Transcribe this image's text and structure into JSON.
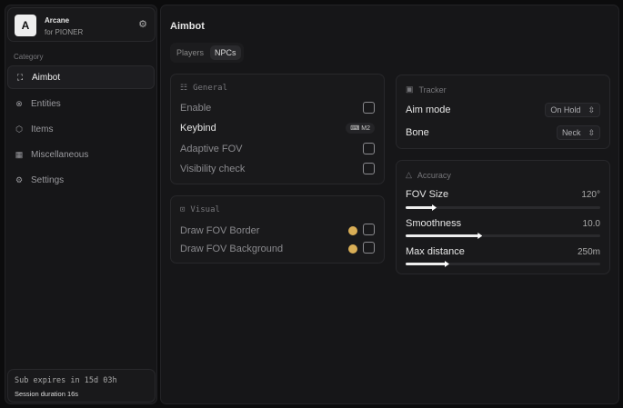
{
  "app": {
    "name": "Arcane",
    "subtitle": "for PIONER",
    "logo_letter": "A"
  },
  "sidebar": {
    "category_label": "Category",
    "items": [
      {
        "label": "Aimbot",
        "icon": "crosshair-icon",
        "active": true
      },
      {
        "label": "Entities",
        "icon": "entities-icon"
      },
      {
        "label": "Items",
        "icon": "cube-icon"
      },
      {
        "label": "Miscellaneous",
        "icon": "misc-icon"
      },
      {
        "label": "Settings",
        "icon": "gear-icon"
      }
    ],
    "footer": {
      "sub": "Sub expires in 15d 03h",
      "session": "Session duration 16s"
    }
  },
  "main": {
    "title": "Aimbot",
    "tabs": [
      {
        "label": "Players"
      },
      {
        "label": "NPCs",
        "active": true
      }
    ]
  },
  "general": {
    "title": "General",
    "enable": "Enable",
    "keybind": "Keybind",
    "keybind_value": "M2",
    "adaptive_fov": "Adaptive FOV",
    "visibility_check": "Visibility check"
  },
  "visual": {
    "title": "Visual",
    "border": "Draw FOV Border",
    "background": "Draw FOV Background",
    "color": "#d9ae56"
  },
  "tracker": {
    "title": "Tracker",
    "aim_mode": "Aim mode",
    "aim_mode_value": "On Hold",
    "bone": "Bone",
    "bone_value": "Neck"
  },
  "accuracy": {
    "title": "Accuracy",
    "fov": {
      "label": "FOV Size",
      "value": "120°",
      "fraction": 0.145
    },
    "smooth": {
      "label": "Smoothness",
      "value": "10.0",
      "fraction": 0.38
    },
    "dist": {
      "label": "Max distance",
      "value": "250m",
      "fraction": 0.21
    }
  }
}
